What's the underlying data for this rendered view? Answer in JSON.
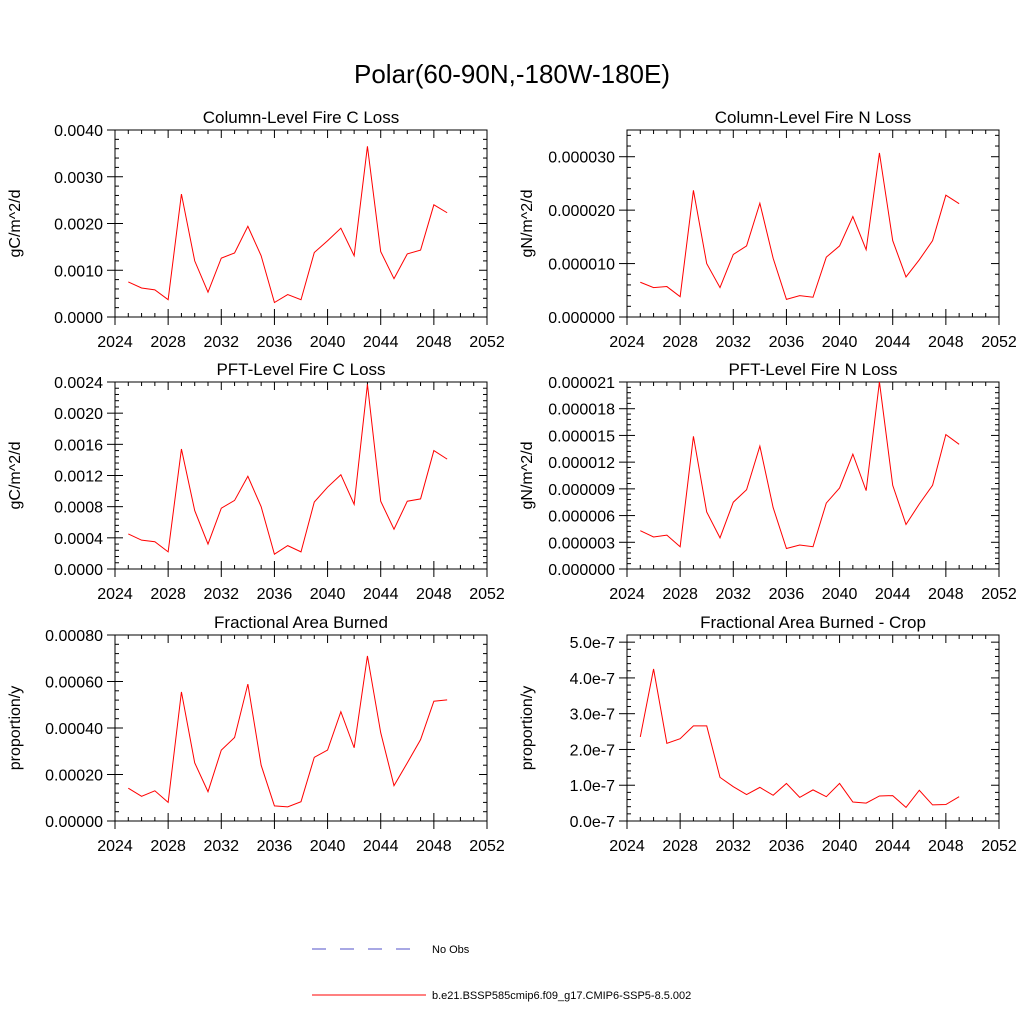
{
  "figure": {
    "title": "Polar(60-90N,-180W-180E)"
  },
  "chart_data": [
    {
      "type": "line",
      "title": "Column-Level Fire C Loss",
      "ylabel": "gC/m^2/d",
      "xlabel": "",
      "xlim": [
        2024,
        2052
      ],
      "ylim": [
        0,
        0.004
      ],
      "xticks": [
        "2024",
        "2028",
        "2032",
        "2036",
        "2040",
        "2044",
        "2048",
        "2052"
      ],
      "yticks": [
        "0.0000",
        "0.0010",
        "0.0020",
        "0.0030",
        "0.0040"
      ],
      "x": [
        2025,
        2026,
        2027,
        2028,
        2029,
        2030,
        2031,
        2032,
        2033,
        2034,
        2035,
        2036,
        2037,
        2038,
        2039,
        2040,
        2041,
        2042,
        2043,
        2044,
        2045,
        2046,
        2047,
        2048,
        2049
      ],
      "series": [
        {
          "name": "b.e21.BSSP585cmip6.f09_g17.CMIP6-SSP5-8.5.002",
          "color": "#ff0000",
          "values": [
            0.00075,
            0.00062,
            0.00058,
            0.00037,
            0.00263,
            0.0012,
            0.00053,
            0.00126,
            0.00137,
            0.00194,
            0.00131,
            0.00031,
            0.00048,
            0.00037,
            0.00138,
            0.00163,
            0.0019,
            0.00131,
            0.00365,
            0.0014,
            0.00082,
            0.00135,
            0.00143,
            0.0024,
            0.00223
          ]
        }
      ]
    },
    {
      "type": "line",
      "title": "Column-Level Fire N Loss",
      "ylabel": "gN/m^2/d",
      "xlabel": "",
      "xlim": [
        2024,
        2052
      ],
      "ylim": [
        0,
        3.5e-05
      ],
      "xticks": [
        "2024",
        "2028",
        "2032",
        "2036",
        "2040",
        "2044",
        "2048",
        "2052"
      ],
      "yticks": [
        "0.000000",
        "0.000010",
        "0.000020",
        "0.000030"
      ],
      "x": [
        2025,
        2026,
        2027,
        2028,
        2029,
        2030,
        2031,
        2032,
        2033,
        2034,
        2035,
        2036,
        2037,
        2038,
        2039,
        2040,
        2041,
        2042,
        2043,
        2044,
        2045,
        2046,
        2047,
        2048,
        2049
      ],
      "series": [
        {
          "name": "b.e21.BSSP585cmip6.f09_g17.CMIP6-SSP5-8.5.002",
          "color": "#ff0000",
          "values": [
            6.5e-06,
            5.5e-06,
            5.7e-06,
            3.8e-06,
            2.37e-05,
            1e-05,
            5.5e-06,
            1.17e-05,
            1.33e-05,
            2.13e-05,
            1.1e-05,
            3.3e-06,
            4e-06,
            3.7e-06,
            1.12e-05,
            1.33e-05,
            1.88e-05,
            1.26e-05,
            3.07e-05,
            1.43e-05,
            7.5e-06,
            1.07e-05,
            1.43e-05,
            2.28e-05,
            2.12e-05
          ]
        }
      ]
    },
    {
      "type": "line",
      "title": "PFT-Level Fire C Loss",
      "ylabel": "gC/m^2/d",
      "xlabel": "",
      "xlim": [
        2024,
        2052
      ],
      "ylim": [
        0,
        0.0024
      ],
      "xticks": [
        "2024",
        "2028",
        "2032",
        "2036",
        "2040",
        "2044",
        "2048",
        "2052"
      ],
      "yticks": [
        "0.0000",
        "0.0004",
        "0.0008",
        "0.0012",
        "0.0016",
        "0.0020",
        "0.0024"
      ],
      "x": [
        2025,
        2026,
        2027,
        2028,
        2029,
        2030,
        2031,
        2032,
        2033,
        2034,
        2035,
        2036,
        2037,
        2038,
        2039,
        2040,
        2041,
        2042,
        2043,
        2044,
        2045,
        2046,
        2047,
        2048,
        2049
      ],
      "series": [
        {
          "name": "b.e21.BSSP585cmip6.f09_g17.CMIP6-SSP5-8.5.002",
          "color": "#ff0000",
          "values": [
            0.00045,
            0.00037,
            0.00035,
            0.00022,
            0.00154,
            0.00075,
            0.00032,
            0.00078,
            0.00088,
            0.00119,
            0.0008,
            0.00019,
            0.0003,
            0.00022,
            0.00086,
            0.00105,
            0.00121,
            0.00083,
            0.00237,
            0.00087,
            0.00051,
            0.00087,
            0.0009,
            0.00152,
            0.00141
          ]
        }
      ]
    },
    {
      "type": "line",
      "title": "PFT-Level Fire N Loss",
      "ylabel": "gN/m^2/d",
      "xlabel": "",
      "xlim": [
        2024,
        2052
      ],
      "ylim": [
        0,
        2.1e-05
      ],
      "xticks": [
        "2024",
        "2028",
        "2032",
        "2036",
        "2040",
        "2044",
        "2048",
        "2052"
      ],
      "yticks": [
        "0.000000",
        "0.000003",
        "0.000006",
        "0.000009",
        "0.000012",
        "0.000015",
        "0.000018",
        "0.000021"
      ],
      "x": [
        2025,
        2026,
        2027,
        2028,
        2029,
        2030,
        2031,
        2032,
        2033,
        2034,
        2035,
        2036,
        2037,
        2038,
        2039,
        2040,
        2041,
        2042,
        2043,
        2044,
        2045,
        2046,
        2047,
        2048,
        2049
      ],
      "series": [
        {
          "name": "b.e21.BSSP585cmip6.f09_g17.CMIP6-SSP5-8.5.002",
          "color": "#ff0000",
          "values": [
            4.3e-06,
            3.6e-06,
            3.8e-06,
            2.5e-06,
            1.49e-05,
            6.4e-06,
            3.5e-06,
            7.5e-06,
            8.9e-06,
            1.38e-05,
            6.9e-06,
            2.3e-06,
            2.7e-06,
            2.5e-06,
            7.4e-06,
            9.1e-06,
            1.29e-05,
            8.8e-06,
            2.1e-05,
            9.4e-06,
            5e-06,
            7.3e-06,
            9.4e-06,
            1.51e-05,
            1.4e-05
          ]
        }
      ]
    },
    {
      "type": "line",
      "title": "Fractional Area Burned",
      "ylabel": "proportion/y",
      "xlabel": "",
      "xlim": [
        2024,
        2052
      ],
      "ylim": [
        0,
        0.0008
      ],
      "xticks": [
        "2024",
        "2028",
        "2032",
        "2036",
        "2040",
        "2044",
        "2048",
        "2052"
      ],
      "yticks": [
        "0.00000",
        "0.00020",
        "0.00040",
        "0.00060",
        "0.00080"
      ],
      "x": [
        2025,
        2026,
        2027,
        2028,
        2029,
        2030,
        2031,
        2032,
        2033,
        2034,
        2035,
        2036,
        2037,
        2038,
        2039,
        2040,
        2041,
        2042,
        2043,
        2044,
        2045,
        2046,
        2047,
        2048,
        2049
      ],
      "series": [
        {
          "name": "b.e21.BSSP585cmip6.f09_g17.CMIP6-SSP5-8.5.002",
          "color": "#ff0000",
          "values": [
            0.000141,
            0.000106,
            0.00013,
            8e-05,
            0.000555,
            0.00025,
            0.000126,
            0.000305,
            0.000359,
            0.000589,
            0.00024,
            6.5e-05,
            6.1e-05,
            8.3e-05,
            0.000274,
            0.000305,
            0.00047,
            0.000315,
            0.00071,
            0.00038,
            0.000152,
            0.00025,
            0.00035,
            0.000515,
            0.000521
          ]
        }
      ]
    },
    {
      "type": "line",
      "title": "Fractional Area Burned - Crop",
      "ylabel": "proportion/y",
      "xlabel": "",
      "xlim": [
        2024,
        2052
      ],
      "ylim": [
        0,
        5.2e-07
      ],
      "xticks": [
        "2024",
        "2028",
        "2032",
        "2036",
        "2040",
        "2044",
        "2048",
        "2052"
      ],
      "yticks": [
        "0.0e-7",
        "1.0e-7",
        "2.0e-7",
        "3.0e-7",
        "4.0e-7",
        "5.0e-7"
      ],
      "x": [
        2025,
        2026,
        2027,
        2028,
        2029,
        2030,
        2031,
        2032,
        2033,
        2034,
        2035,
        2036,
        2037,
        2038,
        2039,
        2040,
        2041,
        2042,
        2043,
        2044,
        2045,
        2046,
        2047,
        2048,
        2049
      ],
      "series": [
        {
          "name": "b.e21.BSSP585cmip6.f09_g17.CMIP6-SSP5-8.5.002",
          "color": "#ff0000",
          "values": [
            2.35e-07,
            4.25e-07,
            2.17e-07,
            2.3e-07,
            2.66e-07,
            2.66e-07,
            1.22e-07,
            9.6e-08,
            7.4e-08,
            9.4e-08,
            7.2e-08,
            1.05e-07,
            6.6e-08,
            8.7e-08,
            6.8e-08,
            1.05e-07,
            5.3e-08,
            5e-08,
            7e-08,
            7.1e-08,
            3.8e-08,
            8.6e-08,
            4.5e-08,
            4.6e-08,
            6.8e-08
          ]
        }
      ]
    }
  ],
  "legend": {
    "items": [
      {
        "label": "No Obs",
        "color": "#5050c8",
        "style": "dashed"
      },
      {
        "label": "b.e21.BSSP585cmip6.f09_g17.CMIP6-SSP5-8.5.002",
        "color": "#ff0000",
        "style": "solid"
      }
    ]
  }
}
